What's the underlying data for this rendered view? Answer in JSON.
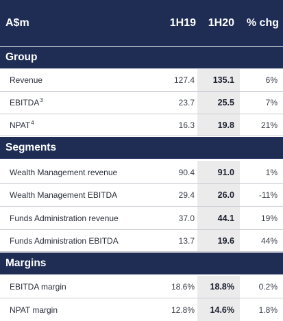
{
  "header": {
    "label": "A$m",
    "col_1h19": "1H19",
    "col_1h20": "1H20",
    "col_chg": "% chg"
  },
  "sections": [
    {
      "title": "Group",
      "rows": [
        {
          "label": "Revenue",
          "sup": "",
          "h19": "127.4",
          "h20": "135.1",
          "chg": "6%"
        },
        {
          "label": "EBITDA",
          "sup": "3",
          "h19": "23.7",
          "h20": "25.5",
          "chg": "7%"
        },
        {
          "label": "NPAT",
          "sup": "4",
          "h19": "16.3",
          "h20": "19.8",
          "chg": "21%"
        }
      ]
    },
    {
      "title": "Segments",
      "rows": [
        {
          "label": "Wealth Management revenue",
          "sup": "",
          "h19": "90.4",
          "h20": "91.0",
          "chg": "1%"
        },
        {
          "label": "Wealth Management EBITDA",
          "sup": "",
          "h19": "29.4",
          "h20": "26.0",
          "chg": "-11%"
        },
        {
          "label": "Funds Administration revenue",
          "sup": "",
          "h19": "37.0",
          "h20": "44.1",
          "chg": "19%"
        },
        {
          "label": "Funds Administration EBITDA",
          "sup": "",
          "h19": "13.7",
          "h20": "19.6",
          "chg": "44%"
        }
      ]
    },
    {
      "title": "Margins",
      "rows": [
        {
          "label": "EBITDA margin",
          "sup": "",
          "h19": "18.6%",
          "h20": "18.8%",
          "chg": "0.2%"
        },
        {
          "label": "NPAT margin",
          "sup": "",
          "h19": "12.8%",
          "h20": "14.6%",
          "chg": "1.8%"
        }
      ]
    }
  ],
  "colors": {
    "header_bg": "#1f2d55",
    "highlight_col_bg": "#ebebeb",
    "row_divider": "#c9ccd3"
  }
}
